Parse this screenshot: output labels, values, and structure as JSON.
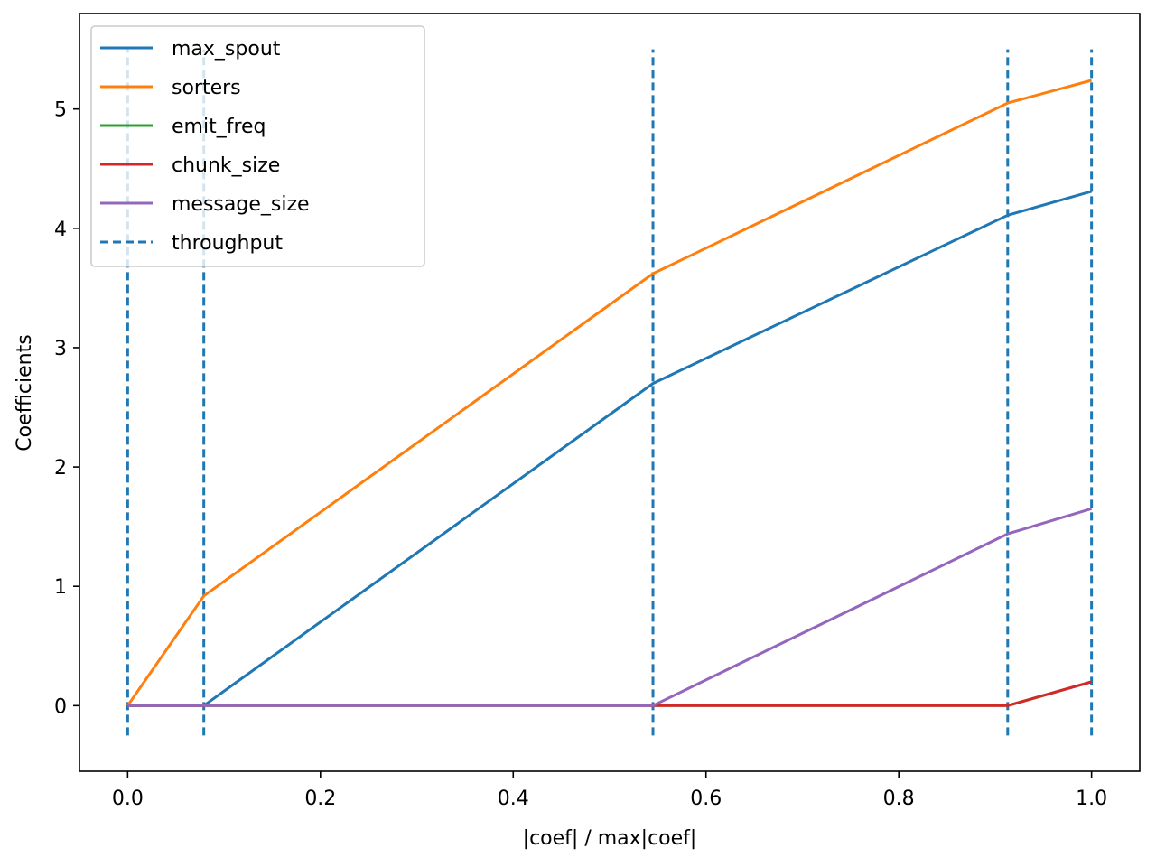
{
  "chart_data": {
    "type": "line",
    "title": "",
    "xlabel": "|coef| / max|coef|",
    "ylabel": "Coefficients",
    "xlim": [
      -0.05,
      1.05
    ],
    "ylim": [
      -0.55,
      5.8
    ],
    "xticks": [
      0.0,
      0.2,
      0.4,
      0.6,
      0.8,
      1.0
    ],
    "xtick_labels": [
      "0.0",
      "0.2",
      "0.4",
      "0.6",
      "0.8",
      "1.0"
    ],
    "yticks": [
      0,
      1,
      2,
      3,
      4,
      5
    ],
    "ytick_labels": [
      "0",
      "1",
      "2",
      "3",
      "4",
      "5"
    ],
    "legend_position": "top-left",
    "x": [
      0.0,
      0.079,
      0.545,
      0.913,
      1.0
    ],
    "series": [
      {
        "name": "max_spout",
        "color": "#1f77b4",
        "values": [
          0,
          0,
          2.7,
          4.11,
          4.31
        ]
      },
      {
        "name": "sorters",
        "color": "#ff7f0e",
        "values": [
          0,
          0.92,
          3.62,
          5.05,
          5.24
        ]
      },
      {
        "name": "emit_freq",
        "color": "#2ca02c",
        "values": [
          0,
          0,
          0,
          0,
          0.2
        ]
      },
      {
        "name": "chunk_size",
        "color": "#d62728",
        "values": [
          0,
          0,
          0,
          0,
          0.2
        ]
      },
      {
        "name": "message_size",
        "color": "#9467bd",
        "values": [
          0,
          0,
          0,
          1.44,
          1.65
        ]
      }
    ],
    "vlines": {
      "name": "throughput",
      "color": "#1f77b4",
      "x": [
        0.0,
        0.079,
        0.545,
        0.913,
        1.0
      ],
      "ymin": -0.25,
      "ymax": 5.5
    }
  }
}
